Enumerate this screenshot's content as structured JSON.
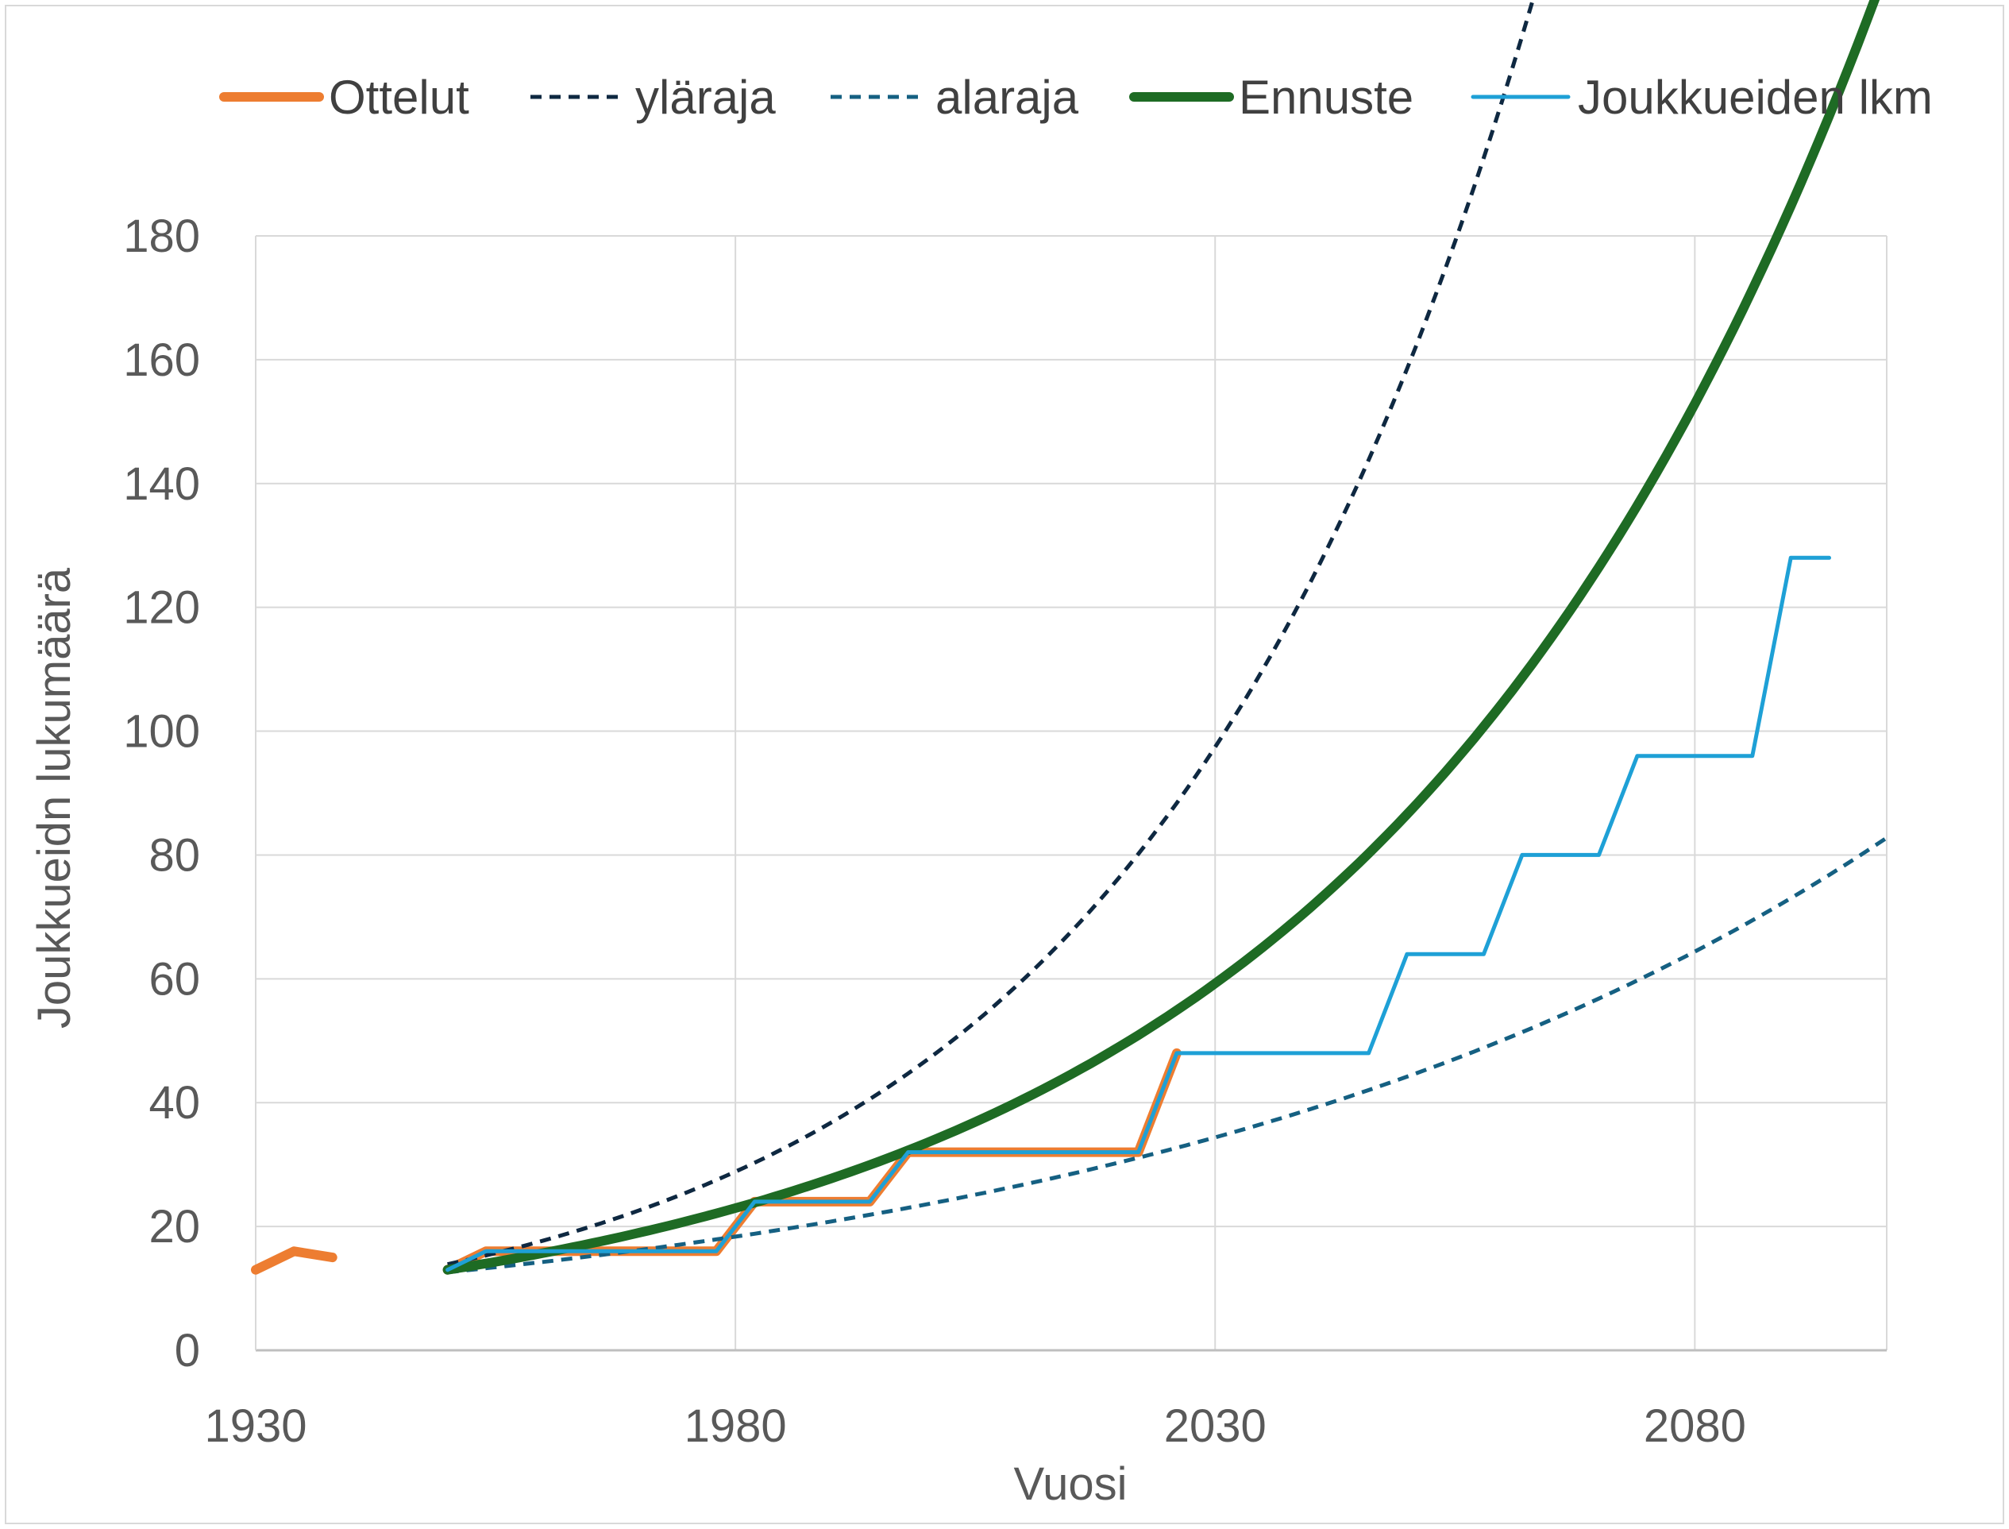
{
  "chart_data": {
    "type": "line",
    "title": "",
    "xlabel": "Vuosi",
    "ylabel": "Joukkueidn lukumäärä",
    "xlim": [
      1930,
      2100
    ],
    "ylim": [
      0,
      180
    ],
    "x_ticks": [
      1930,
      1980,
      2030,
      2080
    ],
    "y_ticks": [
      0,
      20,
      40,
      60,
      80,
      100,
      120,
      140,
      160,
      180
    ],
    "grid": true,
    "legend_position": "top",
    "series": [
      {
        "name": "Ottelut",
        "color": "#ED7D31",
        "style": "solid-thick",
        "segments": [
          [
            [
              1930,
              13
            ],
            [
              1934,
              16
            ],
            [
              1938,
              15
            ]
          ],
          [
            [
              1950,
              13
            ],
            [
              1954,
              16
            ],
            [
              1978,
              16
            ],
            [
              1982,
              24
            ],
            [
              1994,
              24
            ],
            [
              1998,
              32
            ],
            [
              2014,
              32
            ],
            [
              2022,
              32
            ],
            [
              2026,
              48
            ]
          ]
        ]
      },
      {
        "name": "yläraja",
        "color": "#0E2841",
        "style": "dashed",
        "curve": {
          "x0": 1950,
          "y0": 13.9,
          "growth": 0.02434,
          "x_end": 2100
        }
      },
      {
        "name": "alaraja",
        "color": "#156082",
        "style": "dashed",
        "curve": {
          "x0": 1950,
          "y0": 12.6,
          "growth": 0.01255,
          "x_end": 2100
        }
      },
      {
        "name": "Ennuste",
        "color": "#1E6B24",
        "style": "solid-thick",
        "curve": {
          "x0": 1950,
          "y0": 13.0,
          "growth": 0.01896,
          "x_end": 2100
        }
      },
      {
        "name": "Joukkueiden lkm",
        "color": "#1EA0D6",
        "style": "solid",
        "points": [
          [
            1950,
            13
          ],
          [
            1954,
            16
          ],
          [
            1978,
            16
          ],
          [
            1982,
            24
          ],
          [
            1994,
            24
          ],
          [
            1998,
            32
          ],
          [
            2022,
            32
          ],
          [
            2026,
            48
          ],
          [
            2046,
            48
          ],
          [
            2050,
            64
          ],
          [
            2058,
            64
          ],
          [
            2062,
            80
          ],
          [
            2070,
            80
          ],
          [
            2074,
            96
          ],
          [
            2086,
            96
          ],
          [
            2090,
            128
          ],
          [
            2094,
            128
          ]
        ]
      }
    ]
  }
}
